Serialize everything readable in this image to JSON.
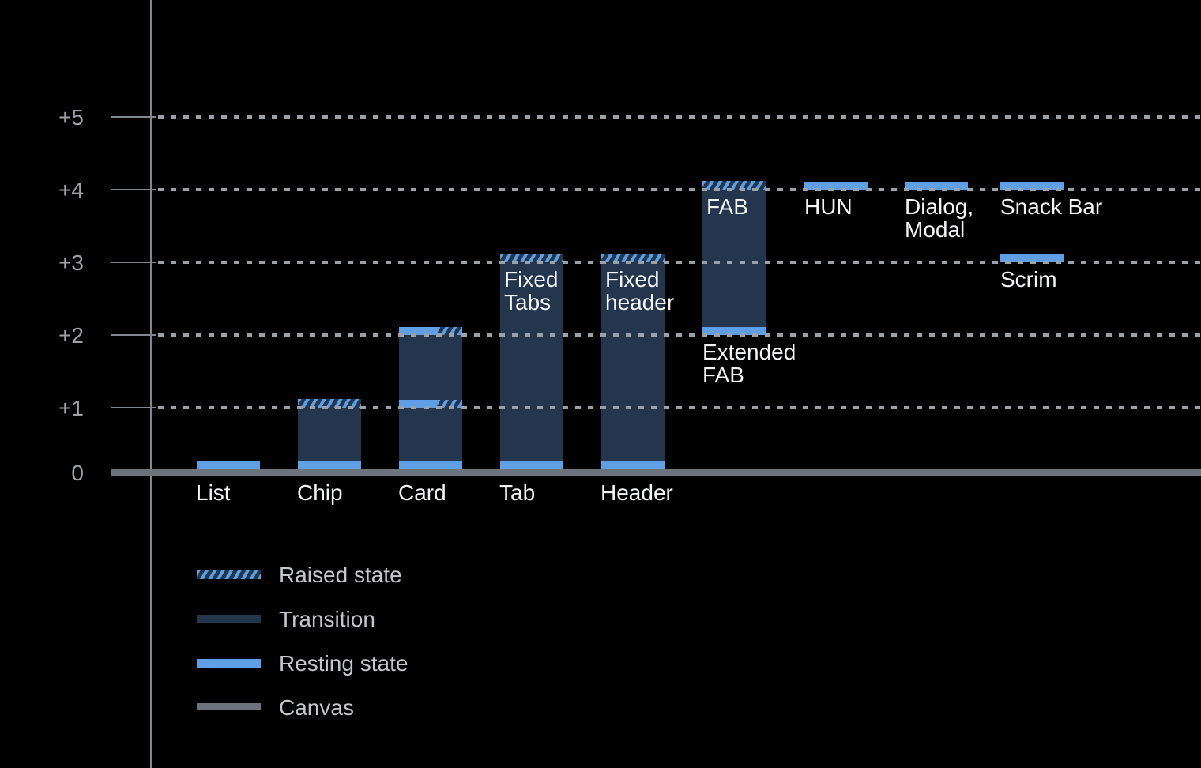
{
  "colors": {
    "background": "#000000",
    "transition": "#24364E",
    "resting": "#5E9FE6",
    "raised_stripe": "#5B9FE3",
    "canvas": "#6C737C",
    "axis_line": "#81878F",
    "gridline": "#9BA1A8",
    "axis_label_text": "#9BA1A8",
    "component_label_text": "#F2F4F5",
    "legend_text": "#C2C6CB"
  },
  "chart_data": {
    "type": "bar",
    "title": "",
    "xlabel": "",
    "ylabel": "",
    "ylim": [
      0,
      5
    ],
    "grid": "dotted-horizontal",
    "gridline_levels": [
      1,
      2,
      3,
      4,
      5
    ],
    "ytick_labels": [
      "+5",
      "+4",
      "+3",
      "+2",
      "+1",
      "0"
    ],
    "ytick_values": [
      5,
      4,
      3,
      2,
      1,
      0
    ],
    "categories": [
      "List",
      "Chip",
      "Card",
      "Tab",
      "Header",
      "Extended FAB",
      "HUN",
      "Dialog, Modal",
      "Snack Bar",
      "Scrim"
    ],
    "bars": [
      {
        "label": "List",
        "label_pos": "axis",
        "resting": 0
      },
      {
        "label": "Chip",
        "label_pos": "axis",
        "resting": 0,
        "transition": [
          0,
          1
        ],
        "raised": 1
      },
      {
        "label": "Card",
        "label_pos": "axis",
        "resting": 0,
        "transition": [
          0,
          2
        ],
        "split_bands": [
          1,
          2
        ]
      },
      {
        "label": "Tab",
        "label_pos": "axis",
        "resting": 0,
        "transition": [
          0,
          3
        ],
        "raised": 3,
        "inner_label": "Fixed\nTabs"
      },
      {
        "label": "Header",
        "label_pos": "axis",
        "resting": 0,
        "transition": [
          0,
          3
        ],
        "raised": 3,
        "inner_label": "Fixed\nheader"
      },
      {
        "label": "Extended\nFAB",
        "label_pos": "under-bar",
        "resting": 2,
        "transition": [
          2,
          4
        ],
        "raised": 4,
        "inner_label": "FAB"
      },
      {
        "label": "HUN",
        "label_pos": "under-bar",
        "resting": 4
      },
      {
        "label": "Dialog,\nModal",
        "label_pos": "under-bar",
        "resting": 4
      },
      {
        "label": "Snack Bar",
        "label_pos": "under-bar",
        "resting": 4
      },
      {
        "label": "Scrim",
        "label_pos": "under-bar",
        "resting": 3
      }
    ],
    "legend_position": "bottom-left",
    "legend": [
      {
        "swatch": "raised",
        "label": "Raised state"
      },
      {
        "swatch": "transition",
        "label": "Transition"
      },
      {
        "swatch": "resting",
        "label": "Resting state"
      },
      {
        "swatch": "canvas",
        "label": "Canvas"
      }
    ]
  }
}
